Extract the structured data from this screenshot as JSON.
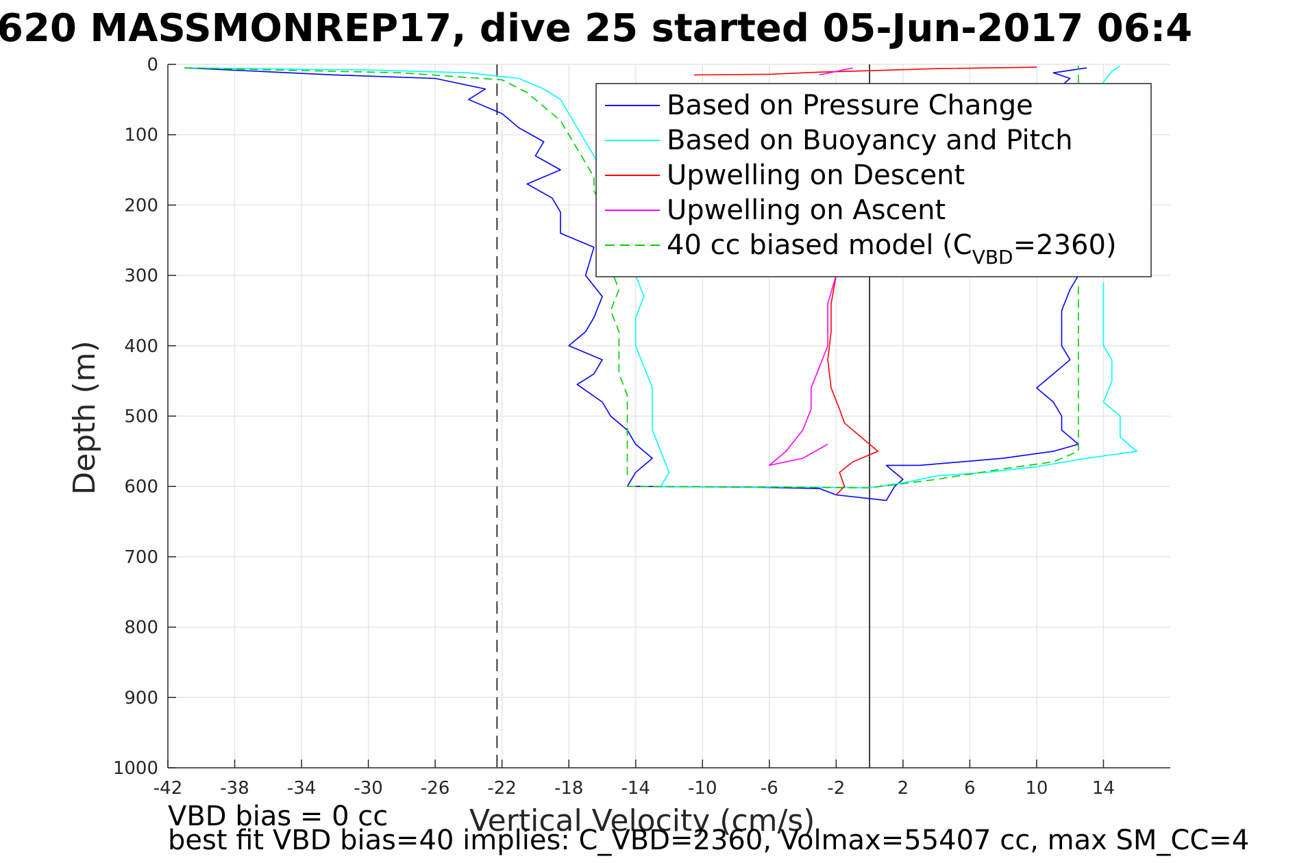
{
  "chart_data": {
    "type": "line",
    "title": "620 MASSMONREP17, dive 25 started 05-Jun-2017 06:4",
    "xlabel": "Vertical Velocity (cm/s)",
    "ylabel": "Depth (m)",
    "xlim": [
      -42,
      18
    ],
    "ylim": [
      0,
      1000
    ],
    "y_reversed": true,
    "grid": true,
    "x_ticks": [
      -42,
      -38,
      -34,
      -30,
      -26,
      -22,
      -18,
      -14,
      -10,
      -6,
      -2,
      2,
      6,
      10,
      14
    ],
    "x_tick_labels": [
      "-42",
      "-38",
      "-34",
      "-30",
      "-26",
      "-22",
      "-18",
      "-14",
      "-10",
      "-6",
      "-2",
      "2",
      "6",
      "10",
      "14"
    ],
    "y_ticks": [
      0,
      100,
      200,
      300,
      400,
      500,
      600,
      700,
      800,
      900,
      1000
    ],
    "y_tick_labels": [
      "0",
      "100",
      "200",
      "300",
      "400",
      "500",
      "600",
      "700",
      "800",
      "900",
      "1000"
    ],
    "legend_position": "top-right",
    "legend": [
      {
        "label": "Based on Pressure Change",
        "color": "#0000ff",
        "dash": false
      },
      {
        "label": "Based on Buoyancy and Pitch",
        "color": "#00ffff",
        "dash": false
      },
      {
        "label": "Upwelling on Descent",
        "color": "#ff0000",
        "dash": false
      },
      {
        "label": "Upwelling on Ascent",
        "color": "#ff00ff",
        "dash": false
      },
      {
        "label_pre": "40 cc biased model (C",
        "label_sub": "VBD",
        "label_post": "=2360)",
        "color": "#00cc00",
        "dash": true
      }
    ],
    "reference_lines": [
      {
        "kind": "vertical",
        "x": -22.3,
        "style": "dashed",
        "color": "#000000"
      },
      {
        "kind": "vertical",
        "x": 0,
        "style": "solid",
        "color": "#000000"
      }
    ],
    "series": [
      {
        "name": "Based on Pressure Change",
        "color": "#0000ff",
        "segments": [
          {
            "points": [
              [
                -41,
                5
              ],
              [
                -32,
                15
              ],
              [
                -26,
                20
              ],
              [
                -23,
                35
              ],
              [
                -24,
                50
              ],
              [
                -22,
                70
              ],
              [
                -21,
                90
              ],
              [
                -19.5,
                110
              ],
              [
                -20,
                130
              ],
              [
                -18.5,
                150
              ],
              [
                -20.5,
                170
              ],
              [
                -19,
                190
              ],
              [
                -18.5,
                210
              ],
              [
                -18.5,
                240
              ],
              [
                -16.5,
                260
              ],
              [
                -17,
                300
              ],
              [
                -16,
                330
              ],
              [
                -16.5,
                360
              ],
              [
                -17,
                380
              ],
              [
                -18,
                400
              ],
              [
                -16,
                420
              ],
              [
                -16.5,
                440
              ],
              [
                -17.5,
                455
              ],
              [
                -16,
                480
              ],
              [
                -15.5,
                500
              ],
              [
                -14.5,
                520
              ],
              [
                -14,
                540
              ],
              [
                -13,
                560
              ],
              [
                -14,
                580
              ],
              [
                -14.5,
                600
              ]
            ]
          },
          {
            "points": [
              [
                -14,
                600
              ],
              [
                -7,
                601
              ],
              [
                -3,
                603
              ],
              [
                -2,
                612
              ],
              [
                1,
                620
              ],
              [
                1.5,
                600
              ],
              [
                2,
                590
              ],
              [
                1.5,
                580
              ],
              [
                1,
                570
              ],
              [
                3,
                570
              ],
              [
                8,
                560
              ],
              [
                11,
                550
              ],
              [
                12.5,
                540
              ],
              [
                11.5,
                520
              ],
              [
                11.5,
                500
              ],
              [
                11,
                480
              ],
              [
                10,
                460
              ],
              [
                11,
                440
              ],
              [
                12,
                420
              ],
              [
                11.5,
                400
              ],
              [
                11.5,
                380
              ],
              [
                11.5,
                350
              ],
              [
                12,
                320
              ],
              [
                12.5,
                300
              ]
            ]
          },
          {
            "points": [
              [
                12,
                45
              ],
              [
                11.5,
                30
              ],
              [
                12,
                20
              ],
              [
                11,
                12
              ],
              [
                13,
                5
              ]
            ]
          }
        ]
      },
      {
        "name": "Based on Buoyancy and Pitch",
        "color": "#00ffff",
        "segments": [
          {
            "points": [
              [
                -41,
                5
              ],
              [
                -30,
                8
              ],
              [
                -24,
                12
              ],
              [
                -21,
                20
              ],
              [
                -19.5,
                35
              ],
              [
                -18.5,
                50
              ],
              [
                -18,
                70
              ],
              [
                -17.5,
                90
              ],
              [
                -17,
                110
              ],
              [
                -16.5,
                130
              ],
              [
                -16,
                150
              ],
              [
                -16,
                170
              ],
              [
                -15.5,
                190
              ],
              [
                -15,
                210
              ],
              [
                -15,
                240
              ],
              [
                -14.5,
                270
              ],
              [
                -14,
                300
              ],
              [
                -13.5,
                330
              ],
              [
                -14,
                360
              ],
              [
                -14,
                400
              ],
              [
                -13.5,
                430
              ],
              [
                -13,
                460
              ],
              [
                -13,
                490
              ],
              [
                -13,
                520
              ],
              [
                -12.5,
                550
              ],
              [
                -12,
                580
              ],
              [
                -12.5,
                600
              ]
            ]
          },
          {
            "points": [
              [
                -12.5,
                600
              ],
              [
                -5,
                601
              ],
              [
                0,
                602
              ],
              [
                2,
                595
              ],
              [
                4,
                585
              ],
              [
                7,
                580
              ],
              [
                10,
                572
              ],
              [
                13,
                560
              ],
              [
                16,
                550
              ],
              [
                15,
                530
              ],
              [
                15,
                500
              ],
              [
                14,
                480
              ],
              [
                14.5,
                450
              ],
              [
                14.5,
                420
              ],
              [
                14,
                400
              ],
              [
                14,
                370
              ],
              [
                14,
                340
              ],
              [
                14,
                310
              ]
            ]
          },
          {
            "points": [
              [
                14,
                45
              ],
              [
                14,
                25
              ],
              [
                14.5,
                10
              ],
              [
                15,
                2
              ]
            ]
          }
        ]
      },
      {
        "name": "40 cc biased model",
        "color": "#00cc00",
        "dashed": true,
        "segments": [
          {
            "points": [
              [
                -41,
                5
              ],
              [
                -28,
                12
              ],
              [
                -22,
                22
              ],
              [
                -20.5,
                40
              ],
              [
                -19.5,
                60
              ],
              [
                -18.5,
                80
              ],
              [
                -18,
                100
              ],
              [
                -17.5,
                120
              ],
              [
                -17,
                140
              ],
              [
                -16.5,
                160
              ],
              [
                -16.5,
                180
              ],
              [
                -16,
                200
              ],
              [
                -16,
                230
              ],
              [
                -15.5,
                260
              ],
              [
                -15.5,
                290
              ],
              [
                -15,
                320
              ],
              [
                -15.5,
                350
              ],
              [
                -15,
                380
              ],
              [
                -15,
                410
              ],
              [
                -15,
                440
              ],
              [
                -14.5,
                470
              ],
              [
                -14.5,
                500
              ],
              [
                -14.5,
                530
              ],
              [
                -14.5,
                560
              ],
              [
                -14.5,
                590
              ]
            ]
          },
          {
            "points": [
              [
                -14.5,
                600
              ],
              [
                -5,
                601
              ],
              [
                0,
                602
              ],
              [
                4,
                590
              ],
              [
                8,
                575
              ],
              [
                11,
                565
              ],
              [
                12.5,
                550
              ],
              [
                12.5,
                520
              ],
              [
                12.5,
                490
              ],
              [
                12.5,
                460
              ],
              [
                12.5,
                430
              ],
              [
                12.5,
                400
              ],
              [
                12.5,
                370
              ],
              [
                12.5,
                340
              ],
              [
                12.5,
                310
              ]
            ]
          },
          {
            "points": [
              [
                12.5,
                45
              ],
              [
                12.5,
                25
              ],
              [
                12.5,
                10
              ],
              [
                12.5,
                2
              ]
            ]
          }
        ]
      },
      {
        "name": "Upwelling on Descent",
        "color": "#ff0000",
        "segments": [
          {
            "points": [
              [
                -10.5,
                15
              ],
              [
                -6,
                14
              ],
              [
                -3,
                11
              ],
              [
                0,
                9
              ],
              [
                4,
                6
              ],
              [
                10,
                4
              ]
            ]
          },
          {
            "points": [
              [
                -2,
                300
              ],
              [
                -2.3,
                340
              ],
              [
                -2.3,
                380
              ],
              [
                -2.5,
                420
              ],
              [
                -2.3,
                460
              ],
              [
                -1.8,
                490
              ],
              [
                -1.5,
                510
              ],
              [
                -0.5,
                530
              ],
              [
                0.5,
                550
              ],
              [
                -1,
                565
              ],
              [
                -1.8,
                580
              ],
              [
                -1.5,
                600
              ],
              [
                -2,
                612
              ]
            ]
          }
        ]
      },
      {
        "name": "Upwelling on Ascent",
        "color": "#ff00ff",
        "segments": [
          {
            "points": [
              [
                -2,
                300
              ],
              [
                -2.5,
                340
              ],
              [
                -2.5,
                370
              ],
              [
                -2.5,
                400
              ],
              [
                -3,
                430
              ],
              [
                -3.5,
                460
              ],
              [
                -3.5,
                490
              ],
              [
                -4,
                520
              ],
              [
                -5,
                550
              ],
              [
                -6,
                570
              ],
              [
                -4,
                560
              ],
              [
                -2.5,
                540
              ]
            ]
          },
          {
            "points": [
              [
                -3,
                15
              ],
              [
                -2,
                10
              ],
              [
                -1,
                5
              ]
            ]
          }
        ]
      }
    ],
    "footer_lines": [
      "VBD bias = 0 cc",
      "best fit VBD bias=40 implies: C_VBD=2360, Volmax=55407 cc, max SM_CC=4"
    ]
  }
}
